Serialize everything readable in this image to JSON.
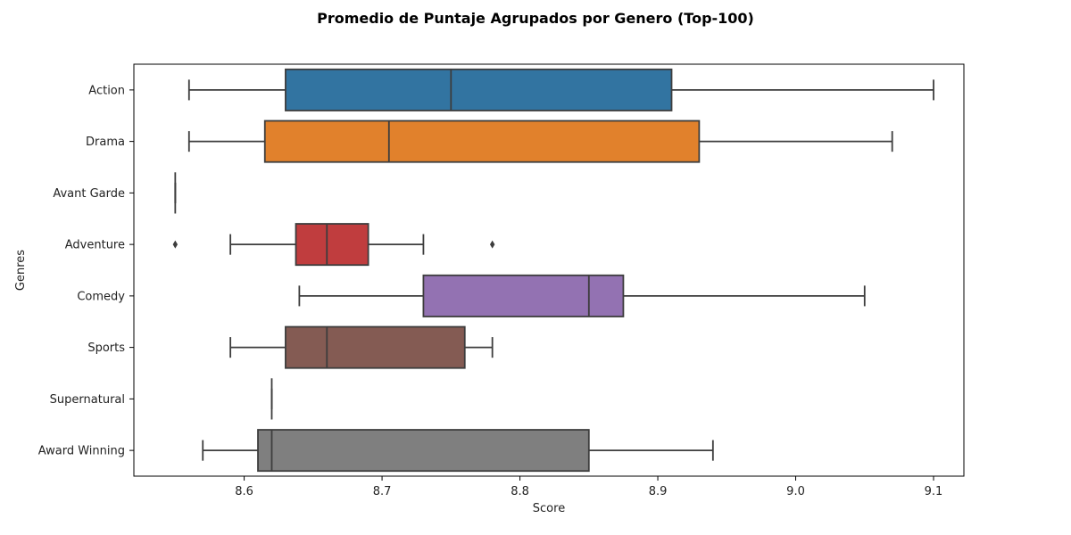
{
  "chart_data": {
    "type": "boxplot",
    "orientation": "horizontal",
    "title": "Promedio de Puntaje Agrupados por Genero (Top-100)",
    "xlabel": "Score",
    "ylabel": "Genres",
    "xlim": [
      8.52,
      9.122
    ],
    "xticks": [
      8.6,
      8.7,
      8.8,
      8.9,
      9.0,
      9.1
    ],
    "xtick_labels": [
      "8.6",
      "8.7",
      "8.8",
      "8.9",
      "9.0",
      "9.1"
    ],
    "grid": false,
    "legend": "none",
    "categories": [
      "Action",
      "Drama",
      "Avant Garde",
      "Adventure",
      "Comedy",
      "Sports",
      "Supernatural",
      "Award Winning"
    ],
    "boxes": [
      {
        "category": "Action",
        "whisker_low": 8.56,
        "q1": 8.63,
        "median": 8.75,
        "q3": 8.91,
        "whisker_high": 9.1,
        "outliers": [],
        "color": "#3274a1"
      },
      {
        "category": "Drama",
        "whisker_low": 8.56,
        "q1": 8.615,
        "median": 8.705,
        "q3": 8.93,
        "whisker_high": 9.07,
        "outliers": [],
        "color": "#e1812c"
      },
      {
        "category": "Avant Garde",
        "whisker_low": 8.55,
        "q1": 8.55,
        "median": 8.55,
        "q3": 8.55,
        "whisker_high": 8.55,
        "outliers": [],
        "color": "#3a923a"
      },
      {
        "category": "Adventure",
        "whisker_low": 8.59,
        "q1": 8.6375,
        "median": 8.66,
        "q3": 8.69,
        "whisker_high": 8.73,
        "outliers": [
          8.55,
          8.78
        ],
        "color": "#c03d3e"
      },
      {
        "category": "Comedy",
        "whisker_low": 8.64,
        "q1": 8.73,
        "median": 8.85,
        "q3": 8.875,
        "whisker_high": 9.05,
        "outliers": [],
        "color": "#9372b2"
      },
      {
        "category": "Sports",
        "whisker_low": 8.59,
        "q1": 8.63,
        "median": 8.66,
        "q3": 8.76,
        "whisker_high": 8.78,
        "outliers": [],
        "color": "#845b53"
      },
      {
        "category": "Supernatural",
        "whisker_low": 8.62,
        "q1": 8.62,
        "median": 8.62,
        "q3": 8.62,
        "whisker_high": 8.62,
        "outliers": [],
        "color": "#d684bd"
      },
      {
        "category": "Award Winning",
        "whisker_low": 8.57,
        "q1": 8.61,
        "median": 8.62,
        "q3": 8.85,
        "whisker_high": 8.94,
        "outliers": [],
        "color": "#7f7f7f"
      }
    ],
    "line_color": "#3d3d3d"
  }
}
